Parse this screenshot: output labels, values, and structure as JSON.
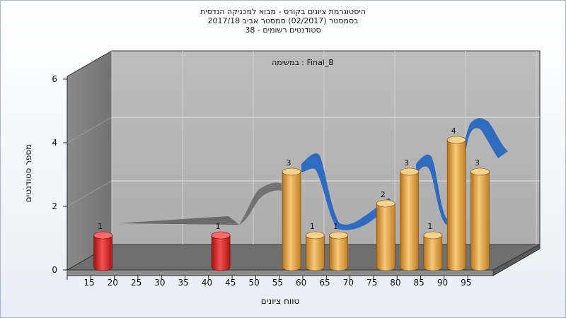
{
  "chart_data": {
    "type": "bar",
    "title_lines": [
      "היסטוגרמת ציונים בקורס - מבוא למכניקה הנדסית",
      "בסמסטר  (02/2017)  סמסטר אביב 2017/18",
      "סטודנטים רשומים - 38"
    ],
    "annotation": "במשימה : Final_B",
    "xlabel": "טווח ציונים",
    "ylabel": "מספר סטודנטים",
    "x_ticks": [
      "15",
      "20",
      "25",
      "30",
      "35",
      "40",
      "45",
      "50",
      "55",
      "60",
      "65",
      "70",
      "75",
      "80",
      "85",
      "90",
      "95"
    ],
    "y_ticks": [
      "0",
      "2",
      "4",
      "6"
    ],
    "ylim": [
      0,
      6
    ],
    "bars": [
      {
        "x": 17.5,
        "value": 1,
        "label": "1",
        "color": "red"
      },
      {
        "x": 42.5,
        "value": 1,
        "label": "1",
        "color": "red"
      },
      {
        "x": 57.5,
        "value": 3,
        "label": "3",
        "color": "orange"
      },
      {
        "x": 62.5,
        "value": 1,
        "label": "1",
        "color": "orange"
      },
      {
        "x": 67.5,
        "value": 1,
        "label": "1",
        "color": "orange"
      },
      {
        "x": 77.5,
        "value": 2,
        "label": "2",
        "color": "orange"
      },
      {
        "x": 82.5,
        "value": 3,
        "label": "3",
        "color": "orange"
      },
      {
        "x": 87.5,
        "value": 1,
        "label": "1",
        "color": "orange"
      },
      {
        "x": 92.5,
        "value": 4,
        "label": "4",
        "color": "orange"
      },
      {
        "x": 97.5,
        "value": 3,
        "label": "3",
        "color": "orange"
      }
    ],
    "colors": {
      "red": "#d42020",
      "orange": "#e6a33c",
      "curve_gray": "#6b6b6b",
      "curve_blue": "#2f6bbf",
      "wall": "#b4b4b4",
      "side_wall": "#7e7e7e",
      "floor": "#6e6e6e"
    }
  }
}
